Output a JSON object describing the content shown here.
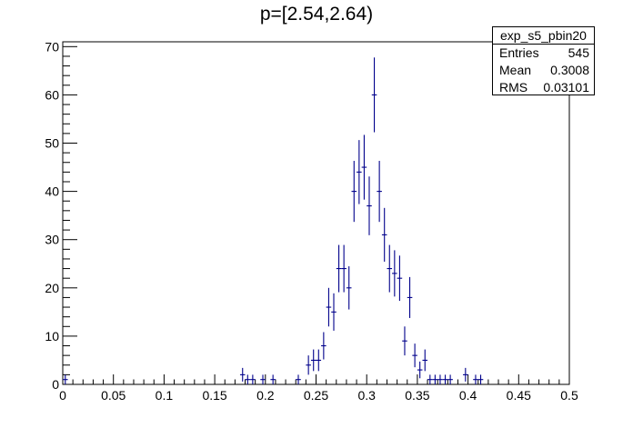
{
  "chart_data": {
    "type": "scatter",
    "title": "p=[2.54,2.64)",
    "xlabel": "",
    "ylabel": "",
    "xlim": [
      0,
      0.5
    ],
    "ylim": [
      0,
      71
    ],
    "x_ticks": [
      "0",
      "0.05",
      "0.1",
      "0.15",
      "0.2",
      "0.25",
      "0.3",
      "0.35",
      "0.4",
      "0.45",
      "0.5"
    ],
    "y_ticks": [
      "0",
      "10",
      "20",
      "30",
      "40",
      "50",
      "60",
      "70"
    ],
    "grid": false,
    "marker_color": "#00008b",
    "bin_width": 0.005,
    "series": [
      {
        "x": [
          0.0025,
          0.1775,
          0.1825,
          0.1875,
          0.1975,
          0.2075,
          0.2325,
          0.2425,
          0.2475,
          0.2525,
          0.2575,
          0.2625,
          0.2675,
          0.2725,
          0.2775,
          0.2825,
          0.2875,
          0.2925,
          0.2975,
          0.3025,
          0.3075,
          0.3125,
          0.3175,
          0.3225,
          0.3275,
          0.3325,
          0.3375,
          0.3425,
          0.3475,
          0.3525,
          0.3575,
          0.3625,
          0.3675,
          0.3725,
          0.3775,
          0.3825,
          0.3975,
          0.4075,
          0.4125
        ],
        "y": [
          1,
          2,
          1,
          1,
          1,
          1,
          1,
          4,
          5,
          5,
          8,
          16,
          15,
          24,
          24,
          20,
          40,
          44,
          45,
          37,
          60,
          40,
          31,
          24,
          23,
          22,
          9,
          18,
          6,
          3,
          5,
          1,
          1,
          1,
          1,
          1,
          2,
          1,
          1
        ]
      }
    ]
  },
  "stats_box": {
    "name": "exp_s5_pbin20",
    "rows": [
      {
        "key": "Entries",
        "value": "545"
      },
      {
        "key": "Mean",
        "value": "0.3008"
      },
      {
        "key": "RMS",
        "value": "0.03101"
      }
    ]
  }
}
